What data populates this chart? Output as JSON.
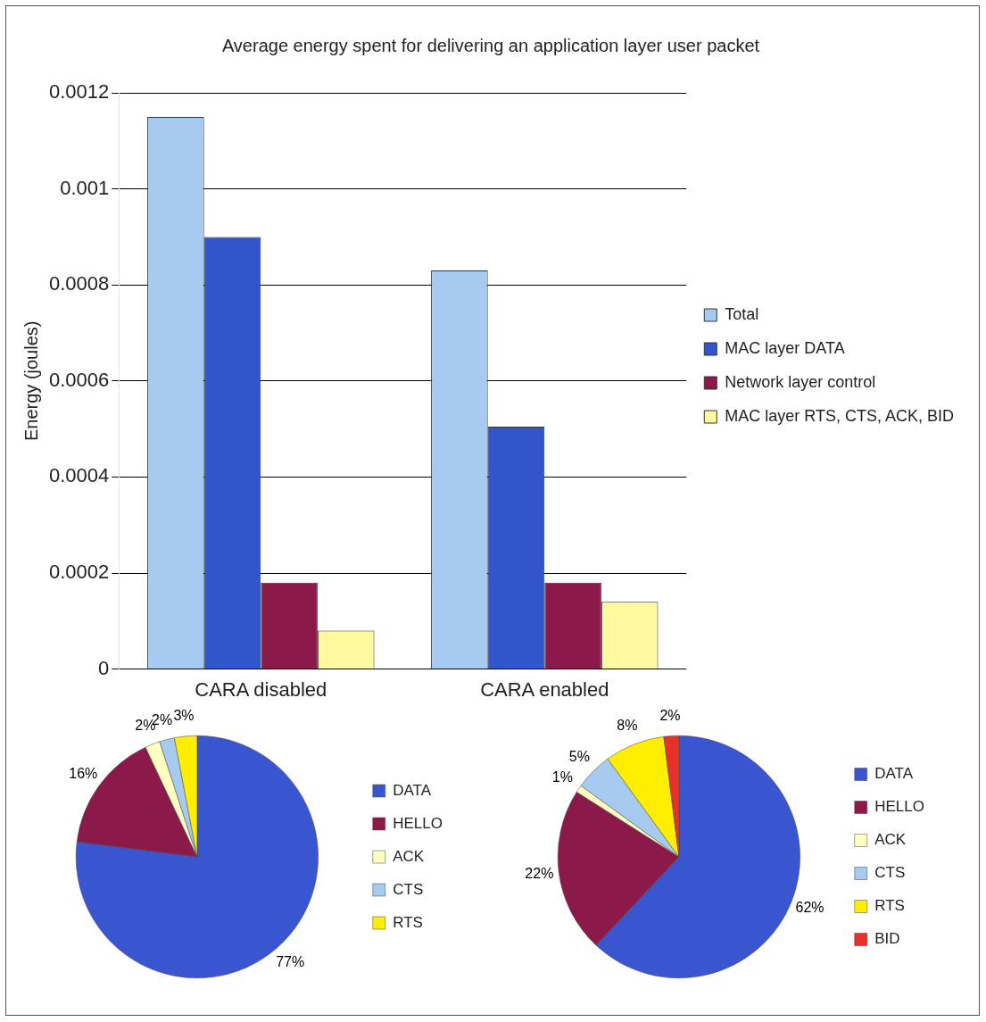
{
  "chart_data": [
    {
      "type": "bar",
      "title": "Average energy spent for delivering an application layer user packet",
      "ylabel": "Energy (joules)",
      "categories": [
        "CARA disabled",
        "CARA enabled"
      ],
      "series": [
        {
          "name": "Total",
          "color": "#a6caf0",
          "values": [
            0.00115,
            0.00083
          ]
        },
        {
          "name": "MAC layer DATA",
          "color": "#3355cc",
          "values": [
            0.0009,
            0.000505
          ]
        },
        {
          "name": "Network layer control",
          "color": "#8b1a4a",
          "values": [
            0.00018,
            0.00018
          ]
        },
        {
          "name": "MAC layer RTS, CTS, ACK, BID",
          "color": "#fffaa0",
          "values": [
            8e-05,
            0.00014
          ]
        }
      ],
      "ylim": [
        0,
        0.0012
      ],
      "yticks": [
        0,
        0.0002,
        0.0004,
        0.0006,
        0.0008,
        0.001,
        0.0012
      ],
      "grid": "y",
      "legend": "right"
    },
    {
      "type": "pie",
      "categories": [
        "DATA",
        "HELLO",
        "ACK",
        "CTS",
        "RTS"
      ],
      "values": [
        77,
        16,
        2,
        2,
        3
      ],
      "value_labels": [
        "77%",
        "16%",
        "2%",
        "2%",
        "3%"
      ],
      "colors": [
        "#3a55d0",
        "#8b1a4a",
        "#ffffc0",
        "#a6caf0",
        "#ffee00"
      ],
      "legend": "right"
    },
    {
      "type": "pie",
      "categories": [
        "DATA",
        "HELLO",
        "ACK",
        "CTS",
        "RTS",
        "BID"
      ],
      "values": [
        62,
        22,
        1,
        5,
        8,
        2
      ],
      "value_labels": [
        "62%",
        "22%",
        "1%",
        "5%",
        "8%",
        "2%"
      ],
      "colors": [
        "#3a55d0",
        "#8b1a4a",
        "#ffffc0",
        "#a6caf0",
        "#ffee00",
        "#e8302a"
      ],
      "legend": "right"
    }
  ]
}
